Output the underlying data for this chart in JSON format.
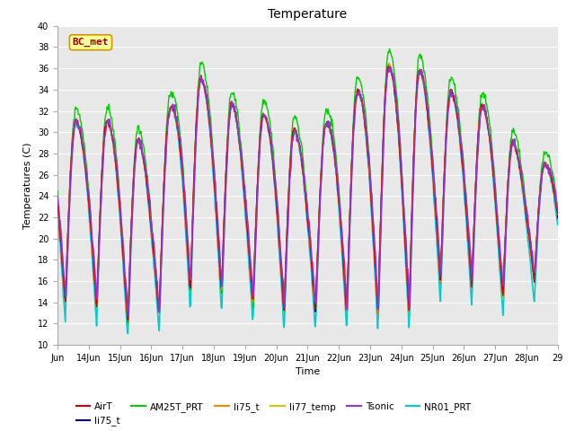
{
  "title": "Temperature",
  "ylabel": "Temperatures (C)",
  "xlabel": "Time",
  "ylim": [
    10,
    40
  ],
  "xlim_days": [
    13,
    29
  ],
  "plot_bg": "#e8e8e8",
  "fig_bg": "#ffffff",
  "grid_color": "#ffffff",
  "series": [
    {
      "label": "AirT",
      "color": "#cc0000",
      "lw": 1.0,
      "zorder": 5
    },
    {
      "label": "li75_t",
      "color": "#000099",
      "lw": 1.0,
      "zorder": 4
    },
    {
      "label": "AM25T_PRT",
      "color": "#00cc00",
      "lw": 1.0,
      "zorder": 3
    },
    {
      "label": "li75_t",
      "color": "#ff8800",
      "lw": 1.0,
      "zorder": 4
    },
    {
      "label": "li77_temp",
      "color": "#cccc00",
      "lw": 1.0,
      "zorder": 3
    },
    {
      "label": "Tsonic",
      "color": "#9933cc",
      "lw": 1.2,
      "zorder": 6
    },
    {
      "label": "NR01_PRT",
      "color": "#00cccc",
      "lw": 1.2,
      "zorder": 2
    }
  ],
  "annotation_text": "BC_met",
  "annotation_bg": "#ffff99",
  "annotation_border": "#cc9900",
  "annotation_text_color": "#990000",
  "tick_fontsize": 7,
  "label_fontsize": 8,
  "title_fontsize": 10,
  "peaks_main": [
    31,
    31,
    28,
    35,
    35,
    31,
    32,
    29,
    32,
    35,
    37,
    35,
    33,
    32,
    27
  ],
  "troughs_main": [
    14,
    12,
    12,
    15,
    15,
    14,
    13,
    13,
    13,
    13,
    12,
    16,
    16,
    14,
    16
  ]
}
